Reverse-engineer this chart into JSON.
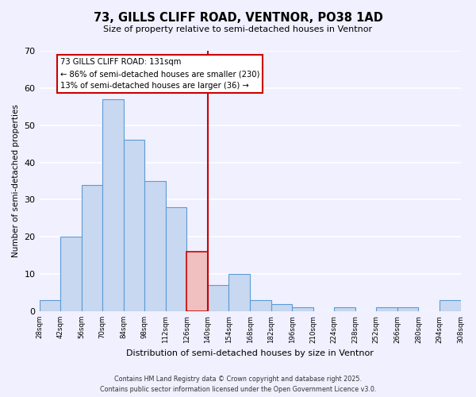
{
  "title": "73, GILLS CLIFF ROAD, VENTNOR, PO38 1AD",
  "subtitle": "Size of property relative to semi-detached houses in Ventnor",
  "xlabel": "Distribution of semi-detached houses by size in Ventnor",
  "ylabel": "Number of semi-detached properties",
  "bin_labels": [
    "28sqm",
    "42sqm",
    "56sqm",
    "70sqm",
    "84sqm",
    "98sqm",
    "112sqm",
    "126sqm",
    "140sqm",
    "154sqm",
    "168sqm",
    "182sqm",
    "196sqm",
    "210sqm",
    "224sqm",
    "238sqm",
    "252sqm",
    "266sqm",
    "280sqm",
    "294sqm",
    "308sqm"
  ],
  "bar_values": [
    3,
    20,
    34,
    57,
    46,
    35,
    28,
    16,
    7,
    10,
    3,
    2,
    1,
    0,
    1,
    0,
    1,
    1,
    0,
    3
  ],
  "bar_color": "#c8d8f0",
  "bar_edge_color": "#5b9bd5",
  "highlight_bar_index": 7,
  "highlight_bar_color": "#f0c0c0",
  "highlight_bar_edge_color": "#cc0000",
  "vline_color": "#cc0000",
  "annotation_title": "73 GILLS CLIFF ROAD: 131sqm",
  "annotation_line1": "← 86% of semi-detached houses are smaller (230)",
  "annotation_line2": "13% of semi-detached houses are larger (36) →",
  "annotation_box_edge_color": "#cc0000",
  "ylim": [
    0,
    70
  ],
  "yticks": [
    0,
    10,
    20,
    30,
    40,
    50,
    60,
    70
  ],
  "footer_line1": "Contains HM Land Registry data © Crown copyright and database right 2025.",
  "footer_line2": "Contains public sector information licensed under the Open Government Licence v3.0.",
  "background_color": "#f0f0ff",
  "grid_color": "#ffffff"
}
